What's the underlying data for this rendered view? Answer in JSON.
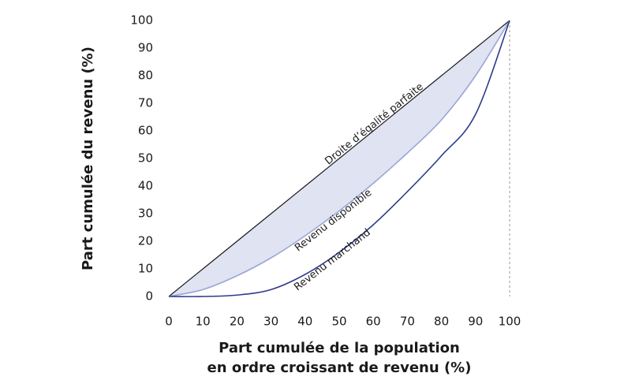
{
  "chart_data": {
    "type": "lorenz",
    "xlabel": [
      "Part cumulée de la population",
      "en ordre croissant de revenu (%)"
    ],
    "ylabel": "Part cumulée du revenu (%)",
    "x": [
      0,
      10,
      20,
      30,
      40,
      50,
      60,
      70,
      80,
      90,
      100
    ],
    "series": [
      {
        "name": "Droite d’égalité parfaite",
        "color": "#1a1a1a",
        "values": [
          0,
          10,
          20,
          30,
          40,
          50,
          60,
          70,
          80,
          90,
          100
        ]
      },
      {
        "name": "Revenu disponible",
        "color": "#9aa6d6",
        "fill": "#dfe3f2",
        "values": [
          0,
          2.5,
          7.5,
          14,
          22,
          31,
          41,
          52,
          64,
          80,
          100
        ]
      },
      {
        "name": "Revenu marchand",
        "color": "#2e3a8c",
        "values": [
          0,
          0,
          0.5,
          2.5,
          8,
          16,
          26,
          38,
          51,
          66,
          100
        ]
      }
    ],
    "xlim": [
      0,
      100
    ],
    "ylim": [
      0,
      100
    ],
    "xticks": [
      0,
      10,
      20,
      30,
      40,
      50,
      60,
      70,
      80,
      90,
      100
    ],
    "yticks": [
      0,
      10,
      20,
      30,
      40,
      50,
      60,
      70,
      80,
      90,
      100
    ]
  }
}
